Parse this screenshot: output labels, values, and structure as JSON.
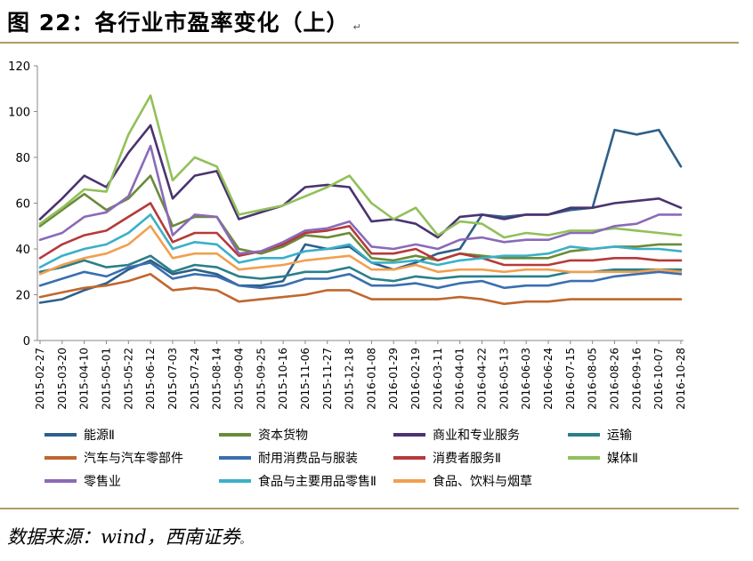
{
  "header": {
    "title": "图 22：各行业市盈率变化（上）",
    "mark": "↵"
  },
  "footer": {
    "source": "数据来源：wind，西南证券",
    "mark": "。"
  },
  "chart_data": {
    "type": "line",
    "title": "各行业市盈率变化（上）",
    "xlabel": "",
    "ylabel": "",
    "ylim": [
      0,
      120
    ],
    "yticks": [
      0,
      20,
      40,
      60,
      80,
      100,
      120
    ],
    "x": [
      "2015-02-27",
      "2015-03-20",
      "2015-04-10",
      "2015-05-01",
      "2015-05-22",
      "2015-06-12",
      "2015-07-03",
      "2015-07-24",
      "2015-08-14",
      "2015-09-04",
      "2015-09-25",
      "2015-10-16",
      "2015-11-06",
      "2015-11-27",
      "2015-12-18",
      "2016-01-08",
      "2016-01-29",
      "2016-02-19",
      "2016-03-11",
      "2016-04-01",
      "2016-04-22",
      "2016-05-13",
      "2016-06-03",
      "2016-06-24",
      "2016-07-15",
      "2016-08-05",
      "2016-08-26",
      "2016-09-16",
      "2016-10-07",
      "2016-10-28"
    ],
    "series": [
      {
        "name": "能源Ⅱ",
        "color": "#2e5f8a",
        "values": [
          16.5,
          18,
          22,
          25,
          31,
          35,
          29,
          31,
          29,
          24,
          24,
          26,
          42,
          40,
          41,
          34,
          31,
          34,
          38,
          40,
          55,
          54,
          55,
          55,
          57,
          58,
          92,
          90,
          92,
          76
        ]
      },
      {
        "name": "资本货物",
        "color": "#6a8b3a",
        "values": [
          50,
          57,
          64,
          57,
          62,
          72,
          50,
          54,
          54,
          40,
          38,
          41,
          46,
          45,
          47,
          36,
          35,
          37,
          35,
          38,
          37,
          36,
          36,
          36,
          39,
          40,
          41,
          41,
          42,
          42
        ]
      },
      {
        "name": "商业和专业服务",
        "color": "#4a3470",
        "values": [
          53,
          62,
          72,
          67,
          82,
          94,
          62,
          72,
          74,
          53,
          56,
          59,
          67,
          68,
          67,
          52,
          53,
          51,
          45,
          54,
          55,
          53,
          55,
          55,
          58,
          58,
          60,
          61,
          62,
          58
        ]
      },
      {
        "name": "运输",
        "color": "#2a7f8a",
        "values": [
          30,
          32,
          35,
          32,
          33,
          37,
          30,
          33,
          32,
          28,
          27,
          28,
          30,
          30,
          32,
          27,
          26,
          28,
          27,
          28,
          28,
          28,
          28,
          28,
          30,
          30,
          31,
          31,
          31,
          31
        ]
      },
      {
        "name": "汽车与汽车零部件",
        "color": "#c0672e",
        "values": [
          19,
          21,
          23,
          24,
          26,
          29,
          22,
          23,
          22,
          17,
          18,
          19,
          20,
          22,
          22,
          18,
          18,
          18,
          18,
          19,
          18,
          16,
          17,
          17,
          18,
          18,
          18,
          18,
          18,
          18
        ]
      },
      {
        "name": "耐用消费品与服装",
        "color": "#3a6fb0",
        "values": [
          24,
          27,
          30,
          28,
          32,
          34,
          27,
          29,
          28,
          24,
          23,
          24,
          27,
          27,
          29,
          24,
          24,
          25,
          23,
          25,
          26,
          23,
          24,
          24,
          26,
          26,
          28,
          29,
          30,
          29
        ]
      },
      {
        "name": "消费者服务Ⅱ",
        "color": "#b53a3a",
        "values": [
          36,
          42,
          46,
          48,
          54,
          60,
          43,
          47,
          47,
          37,
          39,
          42,
          47,
          48,
          50,
          38,
          38,
          40,
          35,
          38,
          36,
          33,
          33,
          33,
          35,
          35,
          36,
          36,
          35,
          35
        ]
      },
      {
        "name": "媒体Ⅱ",
        "color": "#92c05a",
        "values": [
          51,
          58,
          66,
          65,
          90,
          107,
          70,
          80,
          76,
          55,
          57,
          59,
          63,
          67,
          72,
          60,
          53,
          58,
          46,
          52,
          51,
          45,
          47,
          46,
          48,
          48,
          49,
          48,
          47,
          46
        ]
      },
      {
        "name": "零售业",
        "color": "#8a6ab8",
        "values": [
          44,
          47,
          54,
          56,
          63,
          85,
          46,
          55,
          54,
          38,
          39,
          43,
          48,
          49,
          52,
          41,
          40,
          42,
          40,
          44,
          45,
          43,
          44,
          44,
          47,
          47,
          50,
          51,
          55,
          55
        ]
      },
      {
        "name": "食品与主要用品零售Ⅱ",
        "color": "#3ab0c8",
        "values": [
          32,
          37,
          40,
          42,
          47,
          55,
          40,
          43,
          42,
          34,
          36,
          36,
          39,
          40,
          42,
          34,
          34,
          35,
          33,
          35,
          36,
          37,
          37,
          38,
          41,
          40,
          41,
          40,
          40,
          39
        ]
      },
      {
        "name": "食品、饮料与烟草",
        "color": "#f0a050",
        "values": [
          29,
          33,
          36,
          38,
          42,
          50,
          36,
          38,
          38,
          31,
          32,
          33,
          35,
          36,
          37,
          31,
          31,
          33,
          30,
          31,
          31,
          30,
          31,
          31,
          30,
          30,
          30,
          30,
          31,
          30
        ]
      }
    ]
  }
}
